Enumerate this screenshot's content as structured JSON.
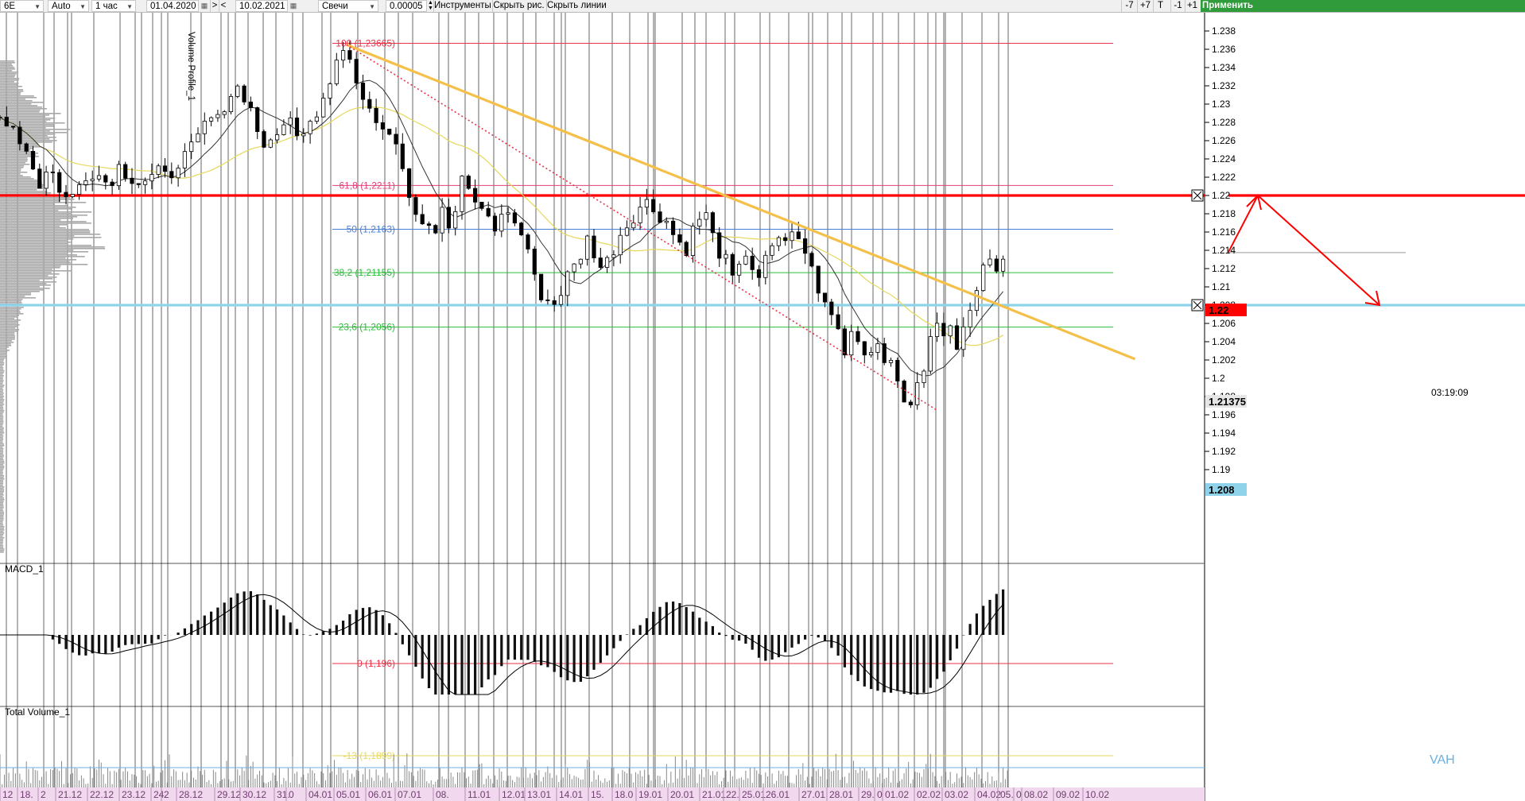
{
  "toolbar": {
    "symbol": "6E",
    "scale_mode": "Auto",
    "timeframe": "1 час",
    "date_from": "01.04.2020",
    "nav_prev": "<",
    "nav_next": ">",
    "date_to": "10.02.2021",
    "chart_style": "Свечи",
    "tick_size": "0.00005",
    "tools_label": "Инструменты",
    "hide_drawings": "Скрыть рис.",
    "hide_lines": "Скрыть линии",
    "btn_minus7": "-7",
    "btn_plus7": "+7",
    "btn_T": "T",
    "btn_minus1": "-1",
    "btn_plus1": "+1",
    "apply_label": "Применить"
  },
  "colors": {
    "fib_100": "#e8334a",
    "fib_618": "#e0407a",
    "fib_50": "#4a7fd6",
    "fib_382": "#2dbd3c",
    "fib_236": "#2dbd3c",
    "fib_0": "#e8334a",
    "level_122": "#ff0000",
    "level_1208": "#8fd3ea",
    "trendline": "#f5c04a",
    "arrow": "#ff0000",
    "ma_slow": "#e6d85a",
    "ma_fast": "#333333",
    "vah": "#6ab0e0",
    "date_bar": "#f2d8ef",
    "date_text": "#6e3d6e"
  },
  "indicators": {
    "volume_profile": "Volume Profile_1",
    "macd": "MACD_1",
    "total_volume": "Total Volume_1",
    "vah_label": "VAH"
  },
  "price_markers": {
    "level_122": "1.22",
    "level_1208": "1.208",
    "last_price": "1.21375",
    "countdown": "03:19:09"
  },
  "chart_data": {
    "type": "candlestick",
    "title": "",
    "symbol": "6E",
    "timeframe": "1 час",
    "ylim": [
      1.192,
      1.238
    ],
    "y_ticks": [
      "1.238",
      "1.236",
      "1.234",
      "1.232",
      "1.23",
      "1.228",
      "1.226",
      "1.224",
      "1.222",
      "1.22",
      "1.218",
      "1.216",
      "1.214",
      "1.212",
      "1.21",
      "1.208",
      "1.206",
      "1.204",
      "1.202",
      "1.2",
      "1.198",
      "1.196",
      "1.194",
      "1.192",
      "1.19"
    ],
    "x_dates": [
      "12",
      "18.",
      "2",
      "21.12",
      "22.12",
      "23.12",
      "24.",
      "2",
      "28.12",
      "29.12",
      "30.12",
      "31.",
      "0",
      "04.01",
      "05.01",
      "06.01",
      "07.01",
      "08.",
      "11.01",
      "12.01",
      "13.01",
      "14.01",
      "15.",
      "18.0",
      "19.01",
      "20.01",
      "21.01",
      "22.",
      "25.01",
      "26.01",
      "27.01",
      "28.01",
      "29.",
      "0",
      "01.02",
      "02.02",
      "03.02",
      "04.02",
      "05.",
      "0",
      "08.02",
      "09.02",
      "10.02"
    ],
    "fibonacci": [
      {
        "label": "100 (1,23665)",
        "value": 1.23665
      },
      {
        "label": "61,8 (1,2211)",
        "value": 1.2211
      },
      {
        "label": "50 (1,2163)",
        "value": 1.2163
      },
      {
        "label": "38,2 (1,21155)",
        "value": 1.21155
      },
      {
        "label": "23,6 (1,2056)",
        "value": 1.2056
      },
      {
        "label": "0 (1,196)",
        "value": 1.196
      },
      {
        "label": "-13 (1,1899)",
        "value": 1.1899
      }
    ],
    "horizontal_levels": [
      1.22,
      1.208
    ],
    "last_price": 1.21375,
    "close_path": [
      [
        0,
        1.2285
      ],
      [
        1.5,
        1.2282
      ],
      [
        3,
        1.2262
      ],
      [
        4.5,
        1.2242
      ],
      [
        6,
        1.2212
      ],
      [
        7.5,
        1.2232
      ],
      [
        9,
        1.2208
      ],
      [
        10.5,
        1.2192
      ],
      [
        12,
        1.2212
      ],
      [
        13.5,
        1.2228
      ],
      [
        15,
        1.2222
      ],
      [
        16.5,
        1.2212
      ],
      [
        18,
        1.2232
      ],
      [
        19.5,
        1.2222
      ],
      [
        21,
        1.2215
      ],
      [
        22.5,
        1.2218
      ],
      [
        24,
        1.2225
      ],
      [
        25.5,
        1.2218
      ],
      [
        27,
        1.2238
      ],
      [
        28.5,
        1.2245
      ],
      [
        30,
        1.2262
      ],
      [
        31.5,
        1.2285
      ],
      [
        33,
        1.2282
      ],
      [
        34.5,
        1.2308
      ],
      [
        36,
        1.2318
      ],
      [
        37.5,
        1.2305
      ],
      [
        39,
        1.2272
      ],
      [
        40.5,
        1.2248
      ],
      [
        42,
        1.2265
      ],
      [
        43.5,
        1.2292
      ],
      [
        45,
        1.2262
      ],
      [
        46.5,
        1.2282
      ],
      [
        48,
        1.2292
      ],
      [
        49.5,
        1.2318
      ],
      [
        51,
        1.2352
      ],
      [
        52.5,
        1.2362
      ],
      [
        53.5,
        1.2335
      ],
      [
        55,
        1.2298
      ],
      [
        56,
        1.2302
      ],
      [
        57,
        1.2282
      ],
      [
        58.5,
        1.2278
      ],
      [
        60,
        1.2262
      ],
      [
        61,
        1.2232
      ],
      [
        61.5,
        1.2215
      ],
      [
        63,
        1.2182
      ],
      [
        64.5,
        1.2172
      ],
      [
        66,
        1.2162
      ],
      [
        67,
        1.2182
      ],
      [
        68,
        1.2165
      ],
      [
        69,
        1.2182
      ],
      [
        70,
        1.2215
      ],
      [
        71,
        1.2205
      ],
      [
        72,
        1.2195
      ],
      [
        73,
        1.2182
      ],
      [
        74,
        1.2178
      ],
      [
        75,
        1.2165
      ],
      [
        76,
        1.2175
      ],
      [
        77,
        1.2185
      ],
      [
        78,
        1.2168
      ],
      [
        79,
        1.2158
      ],
      [
        80,
        1.2142
      ],
      [
        81,
        1.2108
      ],
      [
        82,
        1.2092
      ],
      [
        83,
        1.2085
      ],
      [
        84,
        1.2082
      ],
      [
        85,
        1.2095
      ],
      [
        86,
        1.2112
      ],
      [
        87,
        1.2122
      ],
      [
        88,
        1.2135
      ],
      [
        89,
        1.2152
      ],
      [
        90,
        1.2138
      ],
      [
        91,
        1.2122
      ],
      [
        92,
        1.2128
      ],
      [
        93,
        1.2142
      ],
      [
        94,
        1.2158
      ],
      [
        95,
        1.2168
      ],
      [
        96,
        1.2178
      ],
      [
        97,
        1.2188
      ],
      [
        98,
        1.2192
      ],
      [
        99,
        1.2185
      ],
      [
        100,
        1.2178
      ],
      [
        101,
        1.2172
      ],
      [
        102,
        1.2158
      ],
      [
        103,
        1.2148
      ],
      [
        104,
        1.2142
      ],
      [
        105,
        1.2162
      ],
      [
        106,
        1.2175
      ],
      [
        107,
        1.2178
      ],
      [
        108,
        1.2155
      ],
      [
        109,
        1.2138
      ],
      [
        110,
        1.2128
      ],
      [
        111,
        1.2108
      ],
      [
        112,
        1.2118
      ],
      [
        113,
        1.2138
      ],
      [
        114,
        1.2122
      ],
      [
        115,
        1.2112
      ],
      [
        116,
        1.2128
      ],
      [
        117,
        1.2142
      ],
      [
        118,
        1.2148
      ],
      [
        119,
        1.2152
      ],
      [
        120,
        1.2162
      ],
      [
        121,
        1.2148
      ],
      [
        122,
        1.2142
      ],
      [
        123,
        1.2118
      ],
      [
        124,
        1.2092
      ],
      [
        125,
        1.2082
      ],
      [
        126,
        1.2072
      ],
      [
        127,
        1.2052
      ],
      [
        128,
        1.2032
      ],
      [
        129,
        1.2052
      ],
      [
        130,
        1.2042
      ],
      [
        131,
        1.2032
      ],
      [
        132,
        1.2028
      ],
      [
        133,
        1.2042
      ],
      [
        134,
        1.2025
      ],
      [
        135,
        1.2012
      ],
      [
        136,
        1.1995
      ],
      [
        137,
        1.1978
      ],
      [
        138,
        1.1975
      ],
      [
        139,
        1.1988
      ],
      [
        140,
        1.2012
      ],
      [
        141,
        1.2042
      ],
      [
        142,
        1.2058
      ],
      [
        143,
        1.2048
      ],
      [
        144,
        1.2052
      ],
      [
        145,
        1.2038
      ],
      [
        146,
        1.2062
      ],
      [
        147,
        1.2082
      ],
      [
        148,
        1.2092
      ],
      [
        149,
        1.2118
      ],
      [
        150,
        1.2128
      ],
      [
        151,
        1.2125
      ],
      [
        152,
        1.2138
      ]
    ],
    "macd_zero": 1.198,
    "projection_arrow": [
      [
        152.3,
        1.2138
      ],
      [
        154,
        1.22
      ],
      [
        161,
        1.208
      ]
    ],
    "trendline": [
      [
        52.5,
        1.2365
      ],
      [
        172,
        1.2021
      ]
    ],
    "dotted_line": [
      [
        52.5,
        1.2365
      ],
      [
        142,
        1.1965
      ]
    ]
  }
}
